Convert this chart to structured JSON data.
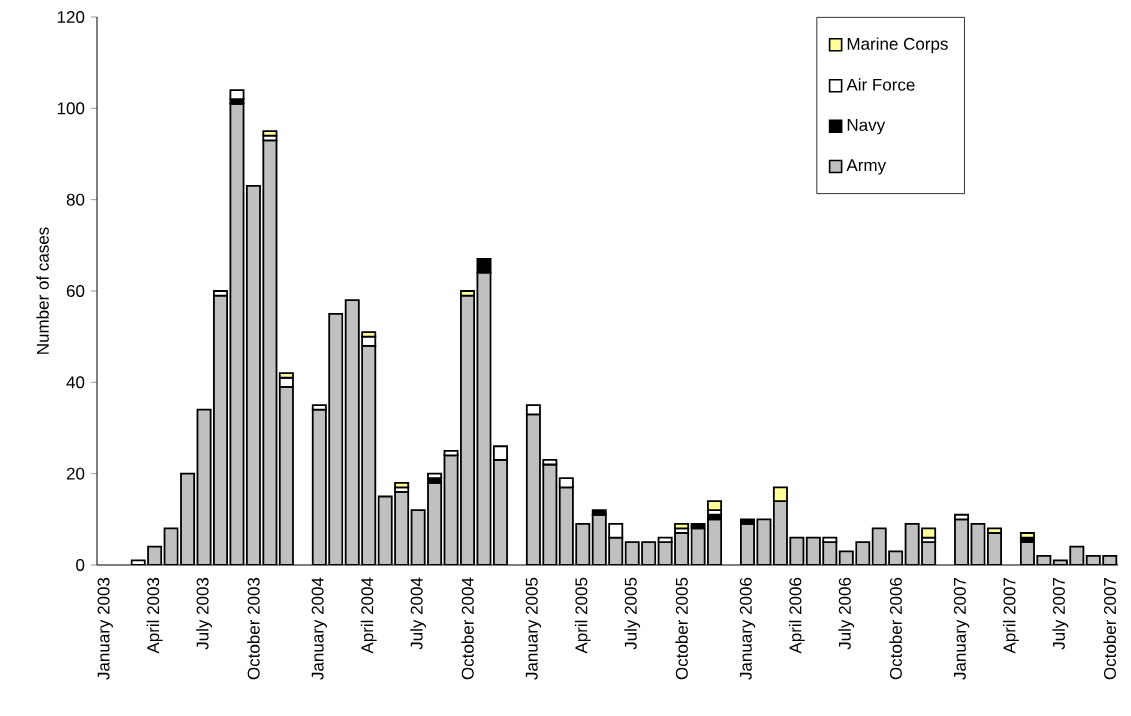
{
  "chart_data": {
    "type": "bar",
    "stacked": true,
    "ylabel": "Number of cases",
    "ylim": [
      0,
      120
    ],
    "yticks": [
      0,
      20,
      40,
      60,
      80,
      100,
      120
    ],
    "legend": "top right",
    "categories": [
      "January 2003",
      null,
      null,
      "April 2003",
      null,
      null,
      "July 2003",
      null,
      null,
      "October 2003",
      null,
      null,
      null,
      "January 2004",
      null,
      null,
      "April 2004",
      null,
      null,
      "July 2004",
      null,
      null,
      "October 2004",
      null,
      null,
      null,
      "January 2005",
      null,
      null,
      "April 2005",
      null,
      null,
      "July 2005",
      null,
      null,
      "October 2005",
      null,
      null,
      null,
      "January 2006",
      null,
      null,
      "April 2006",
      null,
      null,
      "July 2006",
      null,
      null,
      "October 2006",
      null,
      null,
      null,
      "January 2007",
      null,
      null,
      "April 2007",
      null,
      null,
      "July 2007",
      null,
      null,
      "October 2007"
    ],
    "series": [
      {
        "name": "Army",
        "color": "#c0c0c0",
        "values": [
          null,
          null,
          null,
          4,
          8,
          20,
          34,
          59,
          101,
          83,
          93,
          39,
          null,
          34,
          55,
          58,
          48,
          15,
          16,
          12,
          18,
          24,
          59,
          64,
          23,
          null,
          33,
          22,
          17,
          9,
          11,
          6,
          5,
          5,
          5,
          7,
          8,
          10,
          null,
          9,
          10,
          14,
          6,
          6,
          5,
          3,
          5,
          8,
          3,
          9,
          5,
          null,
          10,
          9,
          7,
          null,
          5,
          2,
          1,
          4,
          2,
          2
        ]
      },
      {
        "name": "Navy",
        "color": "#000000",
        "values": [
          null,
          null,
          null,
          null,
          null,
          null,
          null,
          null,
          1,
          null,
          null,
          null,
          null,
          null,
          null,
          null,
          null,
          null,
          null,
          null,
          1,
          null,
          null,
          3,
          null,
          null,
          null,
          null,
          null,
          null,
          1,
          null,
          null,
          null,
          null,
          null,
          1,
          1,
          null,
          1,
          null,
          null,
          null,
          null,
          null,
          null,
          null,
          null,
          null,
          null,
          null,
          null,
          null,
          null,
          null,
          null,
          1,
          null,
          null,
          null,
          null,
          null
        ]
      },
      {
        "name": "Air Force",
        "color": "#ffffff",
        "values": [
          null,
          null,
          1,
          null,
          null,
          null,
          null,
          1,
          2,
          null,
          1,
          2,
          null,
          1,
          null,
          null,
          2,
          null,
          1,
          null,
          1,
          1,
          null,
          null,
          3,
          null,
          2,
          1,
          2,
          null,
          null,
          3,
          null,
          null,
          1,
          1,
          null,
          1,
          null,
          null,
          null,
          null,
          null,
          null,
          1,
          null,
          null,
          null,
          null,
          null,
          1,
          null,
          1,
          null,
          null,
          null,
          null,
          null,
          null,
          null,
          null,
          null
        ]
      },
      {
        "name": "Marine Corps",
        "color": "#ffff99",
        "values": [
          null,
          null,
          null,
          null,
          null,
          null,
          null,
          null,
          null,
          null,
          1,
          1,
          null,
          null,
          null,
          null,
          1,
          null,
          1,
          null,
          null,
          null,
          1,
          null,
          null,
          null,
          null,
          null,
          null,
          null,
          null,
          null,
          null,
          null,
          null,
          1,
          null,
          2,
          null,
          null,
          null,
          3,
          null,
          null,
          null,
          null,
          null,
          null,
          null,
          null,
          2,
          null,
          null,
          null,
          1,
          null,
          1,
          null,
          null,
          null,
          null,
          null
        ]
      }
    ]
  }
}
